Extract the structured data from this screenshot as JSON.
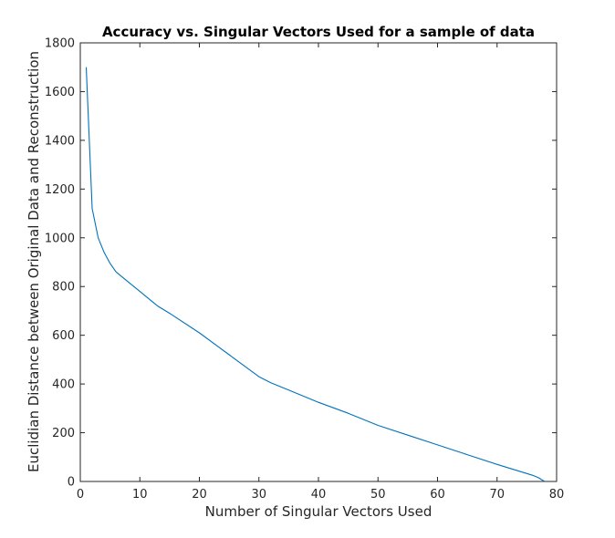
{
  "chart_data": {
    "type": "line",
    "title": "Accuracy vs. Singular Vectors Used for a sample of data",
    "xlabel": "Number of Singular Vectors Used",
    "ylabel": "Euclidian Distance between Original Data and Reconstruction",
    "xlim": [
      0,
      80
    ],
    "ylim": [
      0,
      1800
    ],
    "xticks": [
      0,
      10,
      20,
      30,
      40,
      50,
      60,
      70,
      80
    ],
    "yticks": [
      0,
      200,
      400,
      600,
      800,
      1000,
      1200,
      1400,
      1600,
      1800
    ],
    "grid": false,
    "legend": "none",
    "line_color": "#0072BD",
    "series": [
      {
        "x": [
          1,
          2,
          3,
          4,
          5,
          6,
          8,
          10,
          12,
          13,
          15,
          20,
          25,
          30,
          32,
          35,
          40,
          45,
          50,
          55,
          60,
          65,
          70,
          74,
          76,
          77,
          77.5,
          78
        ],
        "y": [
          1700,
          1120,
          1000,
          940,
          895,
          860,
          820,
          780,
          740,
          720,
          690,
          610,
          520,
          430,
          405,
          375,
          325,
          280,
          230,
          190,
          150,
          110,
          70,
          40,
          25,
          15,
          7,
          0
        ]
      }
    ]
  }
}
